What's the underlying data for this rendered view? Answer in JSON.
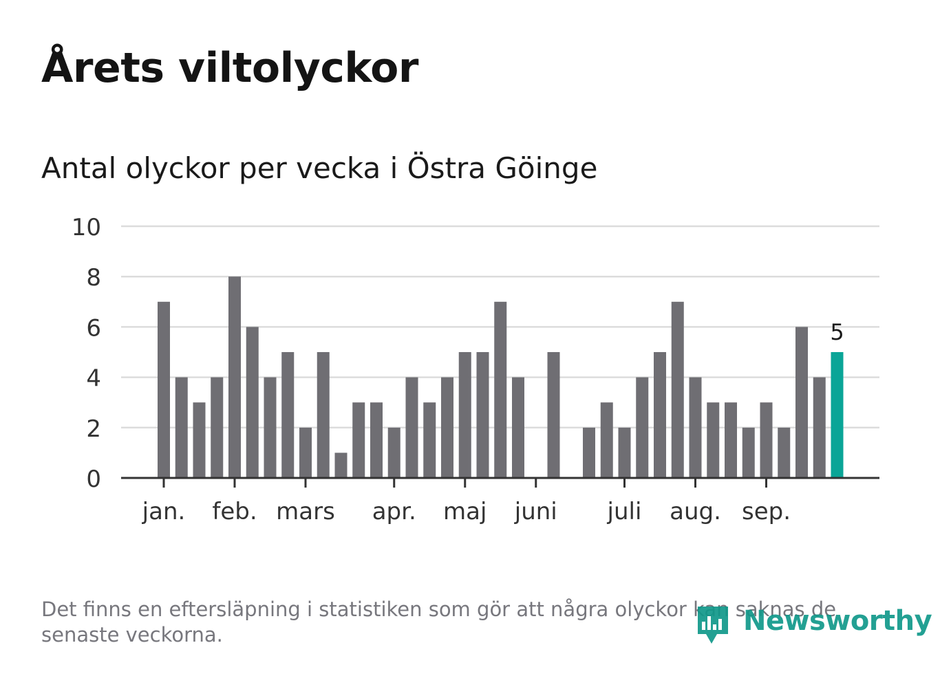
{
  "title": "Årets viltolyckor",
  "subtitle": "Antal olyckor per vecka i Östra Göinge",
  "footnote": "Det finns en eftersläpning i statistiken som gör att några olyckor kan saknas de senaste veckorna.",
  "logo": {
    "text": "Newsworthy",
    "icon": "newsworthy-bar-chart-icon"
  },
  "colors": {
    "bar": "#6f6e73",
    "highlight": "#0aa597",
    "grid": "#dcdcdc",
    "axis": "#333333",
    "text": "#333333"
  },
  "chart_data": {
    "type": "bar",
    "title": "Antal olyckor per vecka i Östra Göinge",
    "xlabel": "",
    "ylabel": "",
    "ylim": [
      0,
      10
    ],
    "y_ticks": [
      "0",
      "2",
      "4",
      "6",
      "8",
      "10"
    ],
    "grid": true,
    "weeks": [
      1,
      2,
      3,
      4,
      5,
      6,
      7,
      8,
      9,
      10,
      11,
      12,
      13,
      14,
      15,
      16,
      17,
      18,
      19,
      20,
      21,
      22,
      23,
      24,
      25,
      26,
      27,
      28,
      29,
      30,
      31,
      32,
      33,
      34,
      35,
      36,
      37,
      38,
      39
    ],
    "values": [
      7,
      4,
      3,
      4,
      8,
      6,
      4,
      5,
      2,
      5,
      1,
      3,
      3,
      2,
      4,
      3,
      4,
      5,
      5,
      7,
      4,
      0,
      5,
      0,
      2,
      3,
      2,
      4,
      5,
      7,
      4,
      3,
      3,
      2,
      3,
      2,
      6,
      4,
      5
    ],
    "highlight_index": 38,
    "highlight_label": "5",
    "month_ticks": [
      {
        "label": "jan.",
        "week": 1
      },
      {
        "label": "feb.",
        "week": 5
      },
      {
        "label": "mars",
        "week": 9
      },
      {
        "label": "apr.",
        "week": 14
      },
      {
        "label": "maj",
        "week": 18
      },
      {
        "label": "juni",
        "week": 22
      },
      {
        "label": "juli",
        "week": 27
      },
      {
        "label": "aug.",
        "week": 31
      },
      {
        "label": "sep.",
        "week": 35
      }
    ]
  }
}
